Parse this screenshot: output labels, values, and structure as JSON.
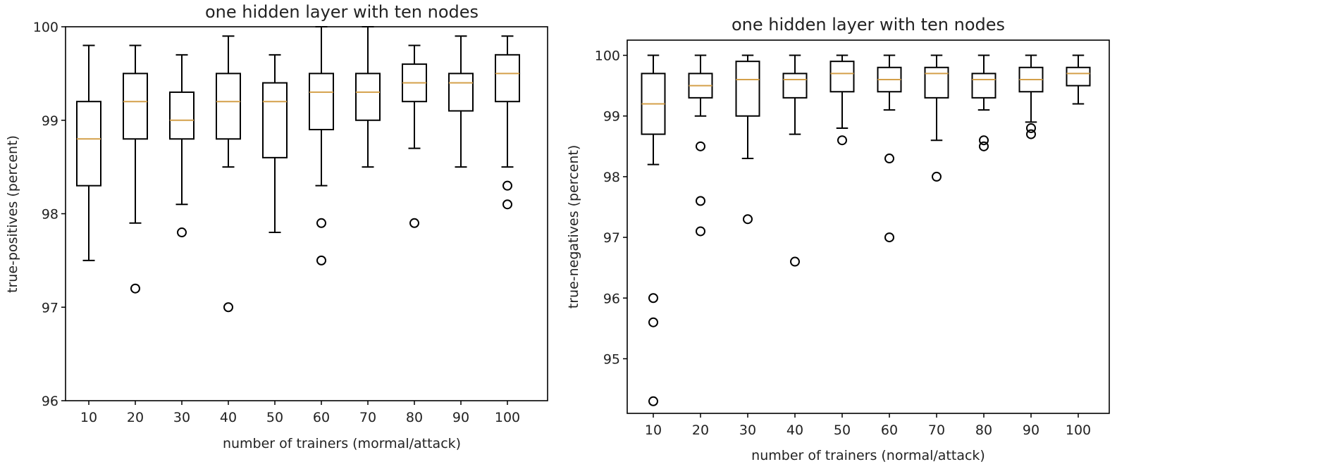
{
  "chart_data": [
    {
      "type": "boxplot",
      "title": "one hidden layer with ten nodes",
      "xlabel": "number of trainers (mormal/attack)",
      "ylabel": "true-positives (percent)",
      "ylim": [
        96,
        100
      ],
      "yticks": [
        96,
        97,
        98,
        99,
        100
      ],
      "categories": [
        "10",
        "20",
        "30",
        "40",
        "50",
        "60",
        "70",
        "80",
        "90",
        "100"
      ],
      "boxes": [
        {
          "whislo": 97.5,
          "q1": 98.3,
          "med": 98.8,
          "q3": 99.2,
          "whishi": 99.8,
          "fliers": []
        },
        {
          "whislo": 97.9,
          "q1": 98.8,
          "med": 99.2,
          "q3": 99.5,
          "whishi": 99.8,
          "fliers": [
            97.2
          ]
        },
        {
          "whislo": 98.1,
          "q1": 98.8,
          "med": 99.0,
          "q3": 99.3,
          "whishi": 99.7,
          "fliers": [
            97.8
          ]
        },
        {
          "whislo": 98.5,
          "q1": 98.8,
          "med": 99.2,
          "q3": 99.5,
          "whishi": 99.9,
          "fliers": [
            97.0
          ]
        },
        {
          "whislo": 97.8,
          "q1": 98.6,
          "med": 99.2,
          "q3": 99.4,
          "whishi": 99.7,
          "fliers": []
        },
        {
          "whislo": 98.3,
          "q1": 98.9,
          "med": 99.3,
          "q3": 99.5,
          "whishi": 100.0,
          "fliers": [
            97.9,
            97.5
          ]
        },
        {
          "whislo": 98.5,
          "q1": 99.0,
          "med": 99.3,
          "q3": 99.5,
          "whishi": 100.0,
          "fliers": []
        },
        {
          "whislo": 98.7,
          "q1": 99.2,
          "med": 99.4,
          "q3": 99.6,
          "whishi": 99.8,
          "fliers": [
            97.9
          ]
        },
        {
          "whislo": 98.5,
          "q1": 99.1,
          "med": 99.4,
          "q3": 99.5,
          "whishi": 99.9,
          "fliers": []
        },
        {
          "whislo": 98.5,
          "q1": 99.2,
          "med": 99.5,
          "q3": 99.7,
          "whishi": 99.9,
          "fliers": [
            98.3,
            98.1
          ]
        }
      ]
    },
    {
      "type": "boxplot",
      "title": "one hidden layer with ten nodes",
      "xlabel": "number of trainers (normal/attack)",
      "ylabel": "true-negatives (percent)",
      "ylim": [
        94.1,
        100.25
      ],
      "yticks": [
        95,
        96,
        97,
        98,
        99,
        100
      ],
      "categories": [
        "10",
        "20",
        "30",
        "40",
        "50",
        "60",
        "70",
        "80",
        "90",
        "100"
      ],
      "boxes": [
        {
          "whislo": 98.2,
          "q1": 98.7,
          "med": 99.2,
          "q3": 99.7,
          "whishi": 100.0,
          "fliers": [
            96.0,
            95.6,
            94.3
          ]
        },
        {
          "whislo": 99.0,
          "q1": 99.3,
          "med": 99.5,
          "q3": 99.7,
          "whishi": 100.0,
          "fliers": [
            98.5,
            97.6,
            97.1
          ]
        },
        {
          "whislo": 98.3,
          "q1": 99.0,
          "med": 99.6,
          "q3": 99.9,
          "whishi": 100.0,
          "fliers": [
            97.3
          ]
        },
        {
          "whislo": 98.7,
          "q1": 99.3,
          "med": 99.6,
          "q3": 99.7,
          "whishi": 100.0,
          "fliers": [
            96.6
          ]
        },
        {
          "whislo": 98.8,
          "q1": 99.4,
          "med": 99.7,
          "q3": 99.9,
          "whishi": 100.0,
          "fliers": [
            98.6
          ]
        },
        {
          "whislo": 99.1,
          "q1": 99.4,
          "med": 99.6,
          "q3": 99.8,
          "whishi": 100.0,
          "fliers": [
            98.3,
            97.0
          ]
        },
        {
          "whislo": 98.6,
          "q1": 99.3,
          "med": 99.7,
          "q3": 99.8,
          "whishi": 100.0,
          "fliers": [
            98.0
          ]
        },
        {
          "whislo": 99.1,
          "q1": 99.3,
          "med": 99.6,
          "q3": 99.7,
          "whishi": 100.0,
          "fliers": [
            98.6,
            98.5
          ]
        },
        {
          "whislo": 98.9,
          "q1": 99.4,
          "med": 99.6,
          "q3": 99.8,
          "whishi": 100.0,
          "fliers": [
            98.8,
            98.7
          ]
        },
        {
          "whislo": 99.2,
          "q1": 99.5,
          "med": 99.7,
          "q3": 99.8,
          "whishi": 100.0,
          "fliers": []
        }
      ]
    }
  ]
}
